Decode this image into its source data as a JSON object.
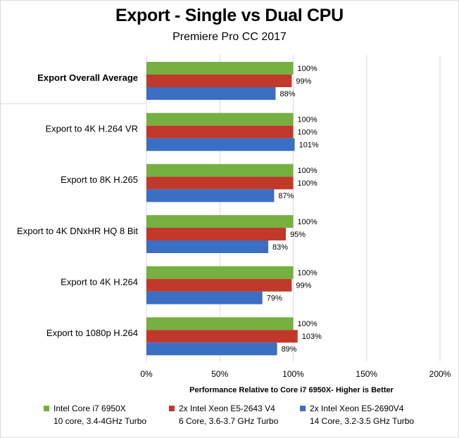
{
  "chart_data": {
    "type": "bar",
    "orientation": "horizontal",
    "title": "Export - Single vs Dual CPU",
    "subtitle": "Premiere Pro CC 2017",
    "xlabel": "Performance Relative to Core i7 6950X- Higher is Better",
    "ylabel": "",
    "xlim": [
      0,
      200
    ],
    "xticks": [
      0,
      50,
      100,
      150,
      200
    ],
    "xtick_labels": [
      "0%",
      "50%",
      "100%",
      "150%",
      "200%"
    ],
    "grid": true,
    "legend_position": "bottom",
    "categories": [
      "Export Overall Average",
      "Export to 4K H.264 VR",
      "Export to 8K H.265",
      "Export to 4K DNxHR HQ 8 Bit",
      "Export to 4K H.264",
      "Export to 1080p H.264"
    ],
    "bold_categories": [
      "Export Overall Average"
    ],
    "series": [
      {
        "name": "Intel Core i7 6950X",
        "detail": "10 core, 3.4-4GHz Turbo",
        "color": "#76b041",
        "values": [
          100,
          100,
          100,
          100,
          100,
          100
        ],
        "labels": [
          "100%",
          "100%",
          "100%",
          "100%",
          "100%",
          "100%"
        ]
      },
      {
        "name": "2x Intel Xeon E5-2643 V4",
        "detail": "6 Core, 3.6-3.7 GHz Turbo",
        "color": "#c0392b",
        "values": [
          99,
          100,
          100,
          95,
          99,
          103
        ],
        "labels": [
          "99%",
          "100%",
          "100%",
          "95%",
          "99%",
          "103%"
        ]
      },
      {
        "name": "2x Intel Xeon E5-2690V4",
        "detail": "14 Core, 3.2-3.5 GHz Turbo",
        "color": "#3a6fc4",
        "values": [
          88,
          101,
          87,
          83,
          79,
          89
        ],
        "labels": [
          "88%",
          "101%",
          "87%",
          "83%",
          "79%",
          "89%"
        ]
      }
    ]
  }
}
